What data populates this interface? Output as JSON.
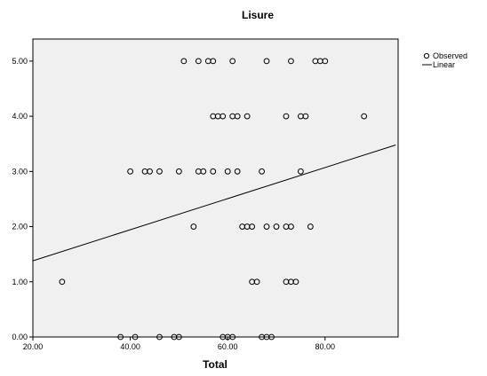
{
  "chart_data": {
    "type": "scatter",
    "title": "Lisure",
    "xlabel": "Total",
    "ylabel": "",
    "xlim": [
      20,
      95
    ],
    "ylim": [
      0,
      5.4
    ],
    "xticks": [
      20,
      40,
      60,
      80
    ],
    "xtick_labels": [
      "20.00",
      "40.00",
      "60.00",
      "80.00"
    ],
    "yticks": [
      0,
      1,
      2,
      3,
      4,
      5
    ],
    "ytick_labels": [
      "0.00",
      "1.00",
      "2.00",
      "3.00",
      "4.00",
      "5.00"
    ],
    "grid": false,
    "legend_position": "top-right",
    "plot_background": "#f0f0f0",
    "series": [
      {
        "name": "Observed",
        "kind": "points",
        "marker": "open-circle",
        "color": "#000000",
        "points": [
          [
            26,
            1
          ],
          [
            38,
            0
          ],
          [
            41,
            0
          ],
          [
            46,
            0
          ],
          [
            49,
            0
          ],
          [
            50,
            0
          ],
          [
            59,
            0
          ],
          [
            60,
            0
          ],
          [
            61,
            0
          ],
          [
            67,
            0
          ],
          [
            68,
            0
          ],
          [
            69,
            0
          ],
          [
            65,
            1
          ],
          [
            66,
            1
          ],
          [
            72,
            1
          ],
          [
            73,
            1
          ],
          [
            74,
            1
          ],
          [
            53,
            2
          ],
          [
            63,
            2
          ],
          [
            64,
            2
          ],
          [
            65,
            2
          ],
          [
            68,
            2
          ],
          [
            70,
            2
          ],
          [
            72,
            2
          ],
          [
            73,
            2
          ],
          [
            77,
            2
          ],
          [
            40,
            3
          ],
          [
            43,
            3
          ],
          [
            44,
            3
          ],
          [
            46,
            3
          ],
          [
            50,
            3
          ],
          [
            54,
            3
          ],
          [
            55,
            3
          ],
          [
            57,
            3
          ],
          [
            60,
            3
          ],
          [
            62,
            3
          ],
          [
            67,
            3
          ],
          [
            75,
            3
          ],
          [
            57,
            4
          ],
          [
            58,
            4
          ],
          [
            59,
            4
          ],
          [
            61,
            4
          ],
          [
            62,
            4
          ],
          [
            64,
            4
          ],
          [
            72,
            4
          ],
          [
            75,
            4
          ],
          [
            76,
            4
          ],
          [
            88,
            4
          ],
          [
            51,
            5
          ],
          [
            54,
            5
          ],
          [
            56,
            5
          ],
          [
            57,
            5
          ],
          [
            61,
            5
          ],
          [
            68,
            5
          ],
          [
            73,
            5
          ],
          [
            78,
            5
          ],
          [
            79,
            5
          ],
          [
            80,
            5
          ]
        ]
      },
      {
        "name": "Linear",
        "kind": "line",
        "color": "#000000",
        "points": [
          [
            20,
            1.38
          ],
          [
            94.5,
            3.48
          ]
        ]
      }
    ]
  }
}
